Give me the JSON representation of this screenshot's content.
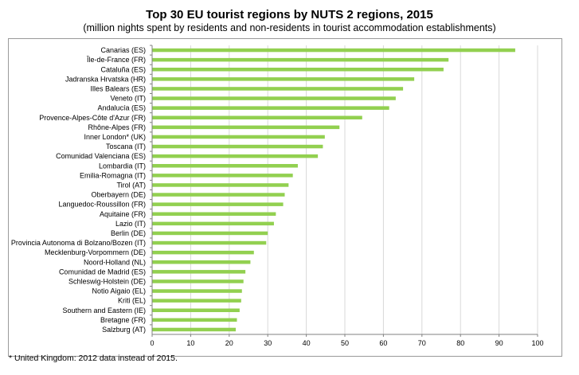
{
  "chart_data": {
    "type": "bar",
    "orientation": "horizontal",
    "title": "Top 30 EU tourist regions by NUTS 2 regions, 2015",
    "subtitle": "(million nights spent by residents and non-residents in tourist accommodation establishments)",
    "xlabel": "",
    "ylabel": "",
    "xlim": [
      0,
      100
    ],
    "xticks": [
      "0",
      "10",
      "20",
      "30",
      "40",
      "50",
      "60",
      "70",
      "80",
      "90",
      "100"
    ],
    "grid": true,
    "bar_color": "#92d050",
    "categories": [
      "Canarias (ES)",
      "Île-de-France (FR)",
      "Cataluña (ES)",
      "Jadranska Hrvatska (HR)",
      "Illes Balears (ES)",
      "Veneto (IT)",
      "Andalucía (ES)",
      "Provence-Alpes-Côte d'Azur (FR)",
      "Rhône-Alpes (FR)",
      "Inner London* (UK)",
      "Toscana (IT)",
      "Comunidad Valenciana (ES)",
      "Lombardia (IT)",
      "Emilia-Romagna (IT)",
      "Tirol (AT)",
      "Oberbayern (DE)",
      "Languedoc-Roussillon (FR)",
      "Aquitaine (FR)",
      "Lazio (IT)",
      "Berlin (DE)",
      "Provincia Autonoma di Bolzano/Bozen (IT)",
      "Mecklenburg-Vorpommern (DE)",
      "Noord-Holland (NL)",
      "Comunidad de Madrid (ES)",
      "Schleswig-Holstein (DE)",
      "Notio Aigaio (EL)",
      "Kriti (EL)",
      "Southern and Eastern (IE)",
      "Bretagne (FR)",
      "Salzburg (AT)"
    ],
    "values": [
      94.2,
      76.9,
      75.6,
      68.0,
      65.1,
      63.2,
      61.5,
      54.5,
      48.6,
      44.8,
      44.3,
      43.0,
      37.8,
      36.5,
      35.4,
      34.4,
      34.0,
      32.1,
      31.6,
      30.0,
      29.6,
      26.4,
      25.5,
      24.2,
      23.7,
      23.3,
      23.1,
      22.7,
      22.0,
      21.7
    ]
  },
  "footnote": "* United Kingdom: 2012 data instead of 2015."
}
